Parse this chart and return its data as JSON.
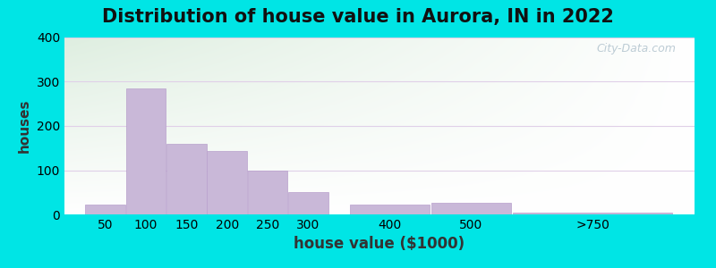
{
  "title": "Distribution of house value in Aurora, IN in 2022",
  "xlabel": "house value ($1000)",
  "ylabel": "houses",
  "bar_centers": [
    50,
    100,
    150,
    200,
    250,
    300,
    400,
    500,
    650
  ],
  "bar_widths": [
    50,
    50,
    50,
    50,
    50,
    50,
    100,
    100,
    200
  ],
  "bar_values": [
    22,
    285,
    160,
    143,
    100,
    50,
    22,
    27,
    5
  ],
  "xtick_positions": [
    50,
    100,
    150,
    200,
    250,
    300,
    400,
    500,
    650
  ],
  "xtick_labels": [
    "50",
    "100",
    "150",
    "200",
    "250",
    "300",
    "400",
    "500",
    ">750"
  ],
  "bar_color": "#c9b8d8",
  "bar_edge_color": "#b8a0cc",
  "ylim": [
    0,
    400
  ],
  "xlim": [
    0,
    775
  ],
  "yticks": [
    0,
    100,
    200,
    300,
    400
  ],
  "background_outer": "#00e5e5",
  "bg_color_topleft": "#deeee0",
  "bg_color_topright": "#f0f8e8",
  "bg_color_bottomleft": "#e8f4f0",
  "bg_color_bottomright": "#ffffff",
  "grid_color": "#e0d0e8",
  "title_fontsize": 15,
  "axis_fontsize": 10,
  "watermark_text": "City-Data.com"
}
